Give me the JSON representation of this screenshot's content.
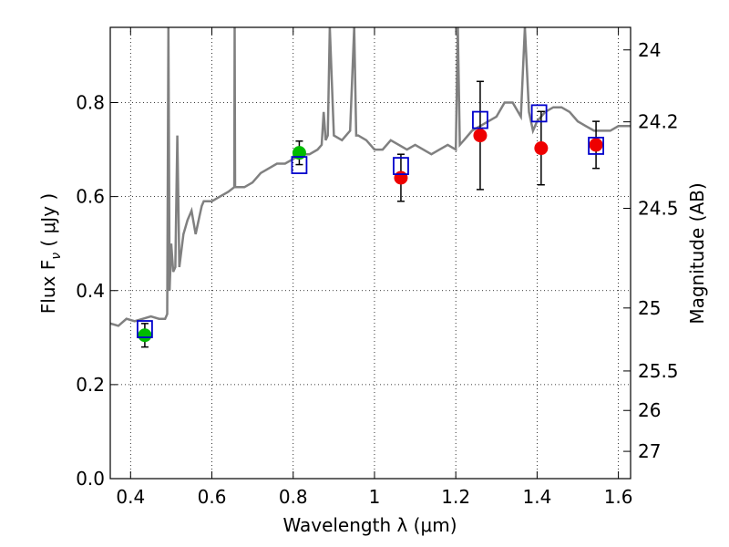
{
  "chart_data": {
    "type": "scatter",
    "xlabel": "Wavelength  λ (μm)",
    "ylabel": "Flux  F",
    "ylabel_sub": "ν",
    "ylabel_unit": " ( μJy )",
    "y2label": "Magnitude (AB)",
    "xlim": [
      0.35,
      1.63
    ],
    "ylim": [
      0.0,
      0.96
    ],
    "grid": true,
    "x_ticks": [
      0.4,
      0.6,
      0.8,
      1.0,
      1.2,
      1.4,
      1.6
    ],
    "x_tick_labels": [
      "0.4",
      "0.6",
      "0.8",
      "1",
      "1.2",
      "1.4",
      "1.6"
    ],
    "y_ticks": [
      0.0,
      0.2,
      0.4,
      0.6,
      0.8
    ],
    "y_tick_labels": [
      "0.0",
      "0.2",
      "0.4",
      "0.6",
      "0.8"
    ],
    "y2_ticks": [
      {
        "label": "24",
        "flux": 0.912
      },
      {
        "label": "24.2",
        "flux": 0.759
      },
      {
        "label": "24.5",
        "flux": 0.575
      },
      {
        "label": "25",
        "flux": 0.363
      },
      {
        "label": "25.5",
        "flux": 0.229
      },
      {
        "label": "26",
        "flux": 0.145
      },
      {
        "label": "27",
        "flux": 0.058
      }
    ],
    "colors": {
      "model": "#808080",
      "ground_points": "#00bb00",
      "space_points": "#ee0000",
      "model_boxes": "#0000cc",
      "errorbar": "#000000"
    },
    "model_spectrum": {
      "x": [
        0.35,
        0.37,
        0.39,
        0.41,
        0.43,
        0.45,
        0.47,
        0.485,
        0.49,
        0.493,
        0.496,
        0.5,
        0.505,
        0.51,
        0.515,
        0.52,
        0.53,
        0.54,
        0.55,
        0.56,
        0.57,
        0.575,
        0.58,
        0.59,
        0.6,
        0.62,
        0.64,
        0.655,
        0.656,
        0.657,
        0.66,
        0.68,
        0.7,
        0.72,
        0.74,
        0.76,
        0.78,
        0.8,
        0.82,
        0.84,
        0.86,
        0.87,
        0.875,
        0.88,
        0.885,
        0.89,
        0.9,
        0.92,
        0.94,
        0.95,
        0.955,
        0.96,
        0.98,
        1.0,
        1.02,
        1.04,
        1.06,
        1.08,
        1.1,
        1.12,
        1.14,
        1.16,
        1.18,
        1.2,
        1.205,
        1.21,
        1.22,
        1.24,
        1.26,
        1.28,
        1.3,
        1.32,
        1.34,
        1.36,
        1.37,
        1.38,
        1.39,
        1.4,
        1.42,
        1.44,
        1.46,
        1.48,
        1.5,
        1.52,
        1.54,
        1.56,
        1.58,
        1.6,
        1.63
      ],
      "y": [
        0.33,
        0.325,
        0.34,
        0.335,
        0.34,
        0.345,
        0.34,
        0.34,
        0.35,
        0.96,
        0.4,
        0.5,
        0.44,
        0.45,
        0.73,
        0.45,
        0.52,
        0.55,
        0.57,
        0.52,
        0.56,
        0.58,
        0.59,
        0.59,
        0.59,
        0.6,
        0.61,
        0.62,
        0.96,
        0.62,
        0.62,
        0.62,
        0.63,
        0.65,
        0.66,
        0.67,
        0.67,
        0.68,
        0.69,
        0.69,
        0.7,
        0.71,
        0.78,
        0.72,
        0.73,
        0.96,
        0.73,
        0.72,
        0.74,
        0.96,
        0.73,
        0.73,
        0.72,
        0.7,
        0.7,
        0.72,
        0.71,
        0.7,
        0.71,
        0.7,
        0.69,
        0.7,
        0.71,
        0.7,
        0.96,
        0.71,
        0.72,
        0.74,
        0.75,
        0.76,
        0.77,
        0.8,
        0.8,
        0.77,
        0.96,
        0.78,
        0.74,
        0.76,
        0.78,
        0.79,
        0.79,
        0.78,
        0.76,
        0.75,
        0.74,
        0.74,
        0.74,
        0.75,
        0.75
      ]
    },
    "series": [
      {
        "name": "",
        "points": [
          {
            "x": 0.435,
            "y": 0.305,
            "err_low": 0.025,
            "err_high": 0.025
          },
          {
            "x": 0.815,
            "y": 0.693,
            "err_low": 0.025,
            "err_high": 0.025
          }
        ]
      },
      {
        "name": "",
        "points": [
          {
            "x": 1.065,
            "y": 0.64,
            "err_low": 0.05,
            "err_high": 0.05
          },
          {
            "x": 1.26,
            "y": 0.73,
            "err_low": 0.115,
            "err_high": 0.115
          },
          {
            "x": 1.41,
            "y": 0.703,
            "err_low": 0.078,
            "err_high": 0.078
          },
          {
            "x": 1.545,
            "y": 0.71,
            "err_low": 0.05,
            "err_high": 0.05
          }
        ]
      }
    ],
    "model_boxes": [
      {
        "x": 0.435,
        "y": 0.318
      },
      {
        "x": 0.815,
        "y": 0.667
      },
      {
        "x": 1.065,
        "y": 0.665
      },
      {
        "x": 1.26,
        "y": 0.763
      },
      {
        "x": 1.405,
        "y": 0.777
      },
      {
        "x": 1.545,
        "y": 0.708
      }
    ]
  }
}
